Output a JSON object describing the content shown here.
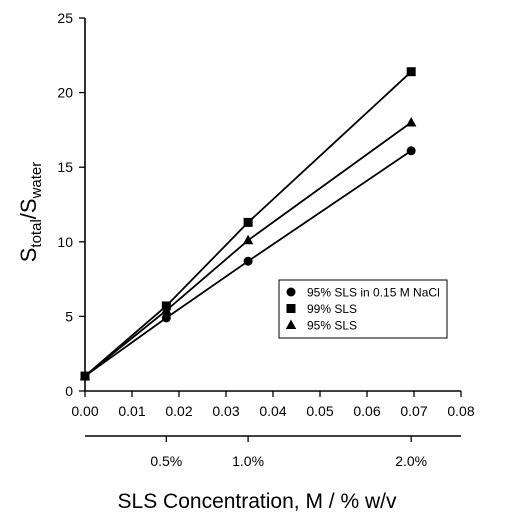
{
  "chart_data": {
    "type": "line",
    "ylabel": {
      "parts": [
        {
          "text": "S",
          "sub": false
        },
        {
          "text": "total",
          "sub": true
        },
        {
          "text": "/S",
          "sub": false
        },
        {
          "text": "water",
          "sub": true
        }
      ]
    },
    "xlabel": "SLS Concentration, M / % w/v",
    "xlim": [
      0.0,
      0.08
    ],
    "ylim": [
      0,
      25
    ],
    "x_ticks": [
      "0.00",
      "0.01",
      "0.02",
      "0.03",
      "0.04",
      "0.05",
      "0.06",
      "0.07",
      "0.08"
    ],
    "y_ticks": [
      "0",
      "5",
      "10",
      "15",
      "20",
      "25"
    ],
    "secondary_x_axis": {
      "ticks": [
        {
          "label": "0.5%",
          "x": 0.0173
        },
        {
          "label": "1.0%",
          "x": 0.0347
        },
        {
          "label": "2.0%",
          "x": 0.0694
        }
      ]
    },
    "grid": false,
    "legend_position": "lower-right",
    "series": [
      {
        "name": "95% SLS in 0.15 M NaCl",
        "marker": "circle",
        "x": [
          0.0,
          0.0173,
          0.0347,
          0.0694
        ],
        "y": [
          1.0,
          4.9,
          8.7,
          16.1
        ]
      },
      {
        "name": "99% SLS",
        "marker": "square",
        "x": [
          0.0,
          0.0173,
          0.0347,
          0.0694
        ],
        "y": [
          1.0,
          5.7,
          11.3,
          21.4
        ]
      },
      {
        "name": "95% SLS",
        "marker": "triangle",
        "x": [
          0.0,
          0.0173,
          0.0347,
          0.0694
        ],
        "y": [
          1.0,
          5.4,
          10.1,
          18.0
        ]
      }
    ]
  }
}
